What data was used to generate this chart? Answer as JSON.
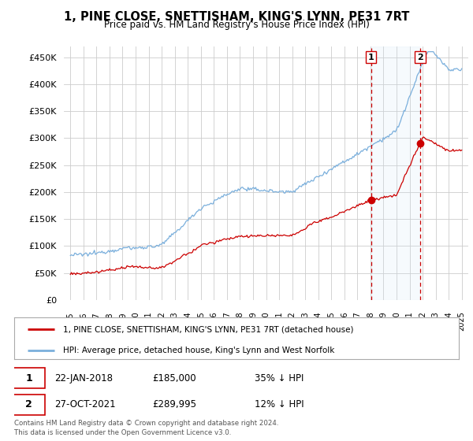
{
  "title": "1, PINE CLOSE, SNETTISHAM, KING'S LYNN, PE31 7RT",
  "subtitle": "Price paid vs. HM Land Registry's House Price Index (HPI)",
  "ylabel_ticks": [
    "£0",
    "£50K",
    "£100K",
    "£150K",
    "£200K",
    "£250K",
    "£300K",
    "£350K",
    "£400K",
    "£450K"
  ],
  "ytick_values": [
    0,
    50000,
    100000,
    150000,
    200000,
    250000,
    300000,
    350000,
    400000,
    450000
  ],
  "ylim": [
    0,
    470000
  ],
  "xlim": [
    1994.5,
    2025.5
  ],
  "sale1_x": 2018.055,
  "sale1_y": 185000,
  "sale2_x": 2021.818,
  "sale2_y": 289995,
  "vline_color": "#cc0000",
  "line_color_red": "#cc0000",
  "line_color_blue": "#7aafdc",
  "shade_color": "#d0e8f8",
  "bg_color": "#ffffff",
  "grid_color": "#cccccc",
  "legend_line1": "1, PINE CLOSE, SNETTISHAM, KING'S LYNN, PE31 7RT (detached house)",
  "legend_line2": "HPI: Average price, detached house, King's Lynn and West Norfolk",
  "table_row1": [
    "1",
    "22-JAN-2018",
    "£185,000",
    "35% ↓ HPI"
  ],
  "table_row2": [
    "2",
    "27-OCT-2021",
    "£289,995",
    "12% ↓ HPI"
  ],
  "footnote": "Contains HM Land Registry data © Crown copyright and database right 2024.\nThis data is licensed under the Open Government Licence v3.0."
}
